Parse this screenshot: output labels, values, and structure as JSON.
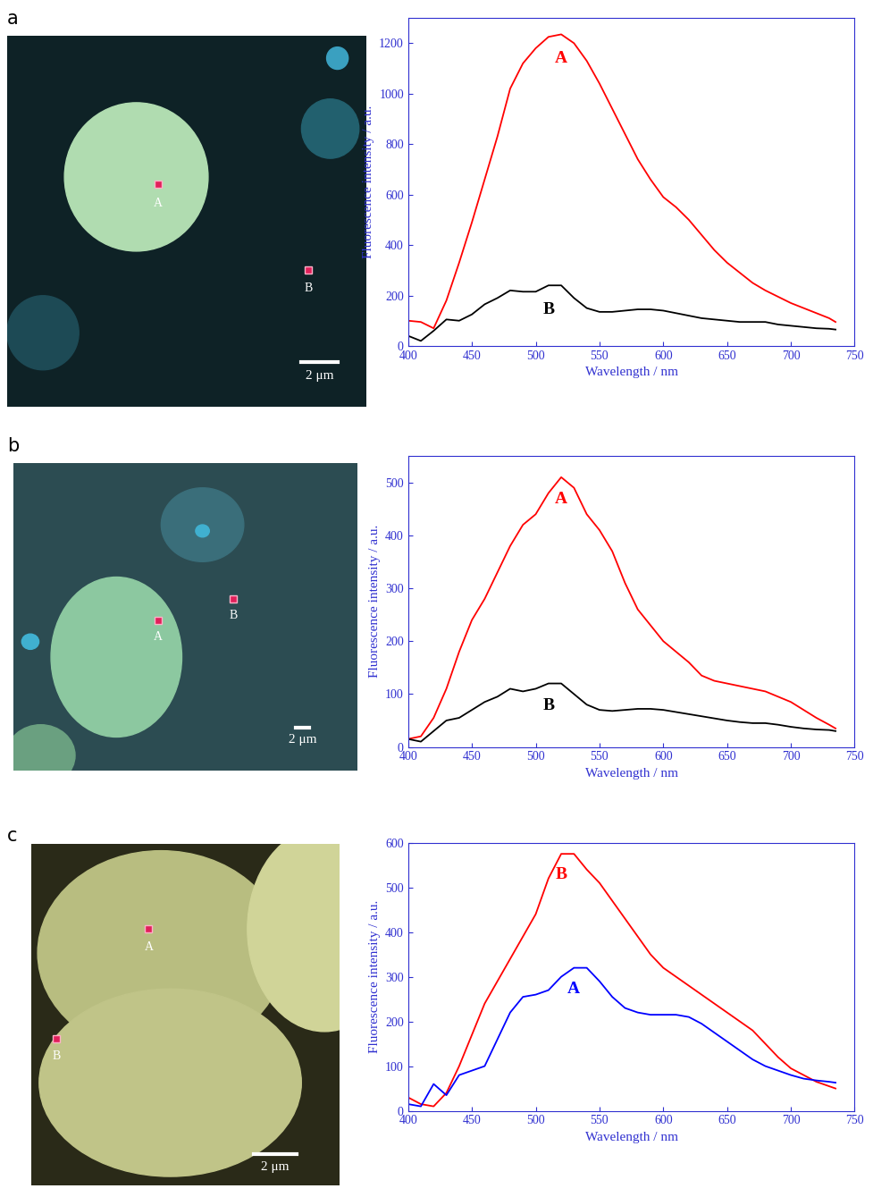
{
  "chart_data": [
    {
      "type": "line",
      "xlabel": "Wavelength / nm",
      "ylabel": "Fluorescence intensity / a.u.",
      "xlim": [
        400,
        750
      ],
      "xticks": [
        400,
        450,
        500,
        550,
        600,
        650,
        700,
        750
      ],
      "ylim": [
        0,
        1300
      ],
      "yticks": [
        0,
        200,
        400,
        600,
        800,
        1000,
        1200
      ],
      "x": [
        400,
        410,
        420,
        430,
        440,
        450,
        460,
        470,
        480,
        490,
        500,
        510,
        520,
        530,
        540,
        550,
        560,
        570,
        580,
        590,
        600,
        610,
        620,
        630,
        640,
        650,
        660,
        670,
        680,
        690,
        700,
        710,
        720,
        730,
        735
      ],
      "series": [
        {
          "name": "A",
          "color": "#ff0000",
          "values": [
            100,
            95,
            70,
            180,
            330,
            490,
            660,
            830,
            1020,
            1120,
            1180,
            1225,
            1235,
            1200,
            1130,
            1040,
            940,
            840,
            740,
            660,
            590,
            550,
            500,
            440,
            380,
            330,
            290,
            250,
            220,
            195,
            170,
            150,
            130,
            110,
            95
          ]
        },
        {
          "name": "B",
          "color": "#000000",
          "values": [
            40,
            20,
            60,
            105,
            100,
            125,
            165,
            190,
            220,
            215,
            215,
            240,
            240,
            190,
            150,
            135,
            135,
            140,
            145,
            145,
            140,
            130,
            120,
            110,
            105,
            100,
            95,
            95,
            95,
            85,
            80,
            75,
            70,
            68,
            65
          ]
        }
      ]
    },
    {
      "type": "line",
      "xlabel": "Wavelength / nm",
      "ylabel": "Fluorescence intensity / a.u.",
      "xlim": [
        400,
        750
      ],
      "xticks": [
        400,
        450,
        500,
        550,
        600,
        650,
        700,
        750
      ],
      "ylim": [
        0,
        550
      ],
      "yticks": [
        0,
        100,
        200,
        300,
        400,
        500
      ],
      "x": [
        400,
        410,
        420,
        430,
        440,
        450,
        460,
        470,
        480,
        490,
        500,
        510,
        520,
        530,
        540,
        550,
        560,
        570,
        580,
        590,
        600,
        610,
        620,
        630,
        640,
        650,
        660,
        670,
        680,
        690,
        700,
        710,
        720,
        730,
        735
      ],
      "series": [
        {
          "name": "A",
          "color": "#ff0000",
          "values": [
            15,
            20,
            55,
            110,
            180,
            240,
            280,
            330,
            380,
            420,
            440,
            480,
            510,
            490,
            440,
            410,
            370,
            310,
            260,
            230,
            200,
            180,
            160,
            135,
            125,
            120,
            115,
            110,
            105,
            95,
            85,
            70,
            55,
            42,
            35
          ]
        },
        {
          "name": "B",
          "color": "#000000",
          "values": [
            15,
            10,
            30,
            50,
            55,
            70,
            85,
            95,
            110,
            105,
            110,
            120,
            120,
            100,
            80,
            70,
            68,
            70,
            72,
            72,
            70,
            66,
            62,
            58,
            54,
            50,
            47,
            45,
            45,
            42,
            38,
            35,
            33,
            32,
            30
          ]
        }
      ]
    },
    {
      "type": "line",
      "xlabel": "Wavelength / nm",
      "ylabel": "Fluorescence intensity / a.u.",
      "xlim": [
        400,
        750
      ],
      "xticks": [
        400,
        450,
        500,
        550,
        600,
        650,
        700,
        750
      ],
      "ylim": [
        0,
        600
      ],
      "yticks": [
        0,
        100,
        200,
        300,
        400,
        500,
        600
      ],
      "x": [
        400,
        410,
        420,
        430,
        440,
        450,
        460,
        470,
        480,
        490,
        500,
        510,
        520,
        530,
        540,
        550,
        560,
        570,
        580,
        590,
        600,
        610,
        620,
        630,
        640,
        650,
        660,
        670,
        680,
        690,
        700,
        710,
        720,
        730,
        735
      ],
      "series": [
        {
          "name": "B",
          "color": "#ff0000",
          "values": [
            30,
            15,
            10,
            40,
            100,
            170,
            240,
            290,
            340,
            390,
            440,
            520,
            575,
            575,
            540,
            510,
            470,
            430,
            390,
            350,
            320,
            300,
            280,
            260,
            240,
            220,
            200,
            180,
            150,
            120,
            95,
            80,
            65,
            55,
            50
          ]
        },
        {
          "name": "A",
          "color": "#0000ff",
          "values": [
            15,
            10,
            60,
            35,
            80,
            90,
            100,
            160,
            220,
            255,
            260,
            270,
            300,
            320,
            320,
            290,
            255,
            230,
            220,
            215,
            215,
            215,
            210,
            195,
            175,
            155,
            135,
            115,
            100,
            90,
            80,
            72,
            68,
            65,
            63
          ]
        }
      ]
    }
  ],
  "panels": [
    {
      "label": "a",
      "image": {
        "points": [
          "A",
          "B"
        ],
        "scale_bar": "2 μm"
      }
    },
    {
      "label": "b",
      "image": {
        "points": [
          "A",
          "B"
        ],
        "scale_bar": "2 μm"
      }
    },
    {
      "label": "c",
      "image": {
        "points": [
          "A",
          "B"
        ],
        "scale_bar": "2 μm"
      }
    }
  ]
}
